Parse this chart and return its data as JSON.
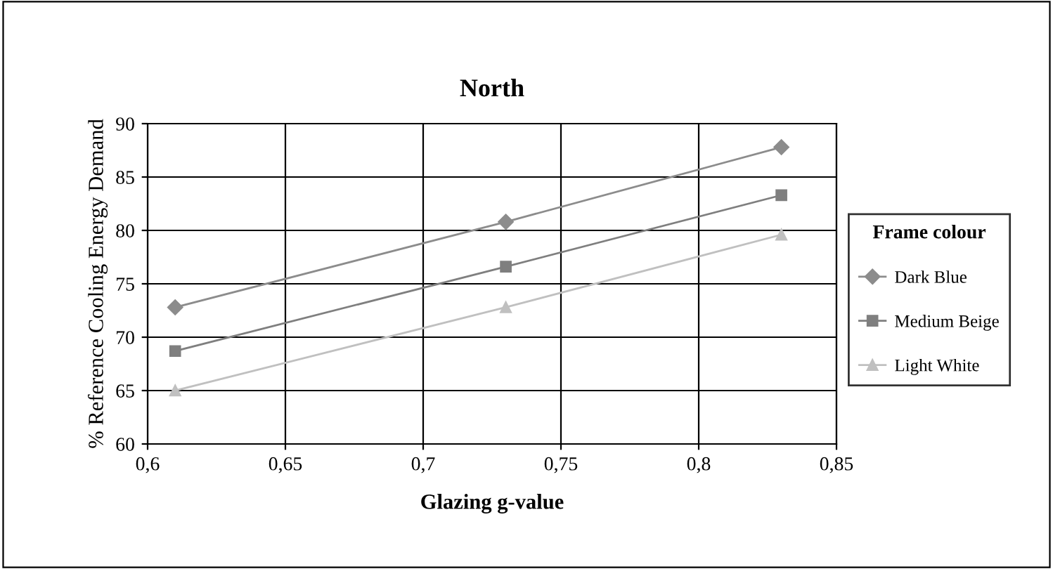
{
  "chart_data": {
    "type": "line",
    "title": "North",
    "xlabel": "Glazing g-value",
    "ylabel": "% Reference Cooling Energy Demand",
    "legend_title": "Frame colour",
    "x": [
      0.61,
      0.73,
      0.83
    ],
    "series": [
      {
        "name": "Dark Blue",
        "color": "#8c8c8c",
        "marker": "diamond",
        "values": [
          72.8,
          80.8,
          87.8
        ]
      },
      {
        "name": "Medium Beige",
        "color": "#7f7f7f",
        "marker": "square",
        "values": [
          68.7,
          76.6,
          83.3
        ]
      },
      {
        "name": "Light White",
        "color": "#c0c0c0",
        "marker": "triangle",
        "values": [
          65.0,
          72.8,
          79.6
        ]
      }
    ],
    "xlim": [
      0.6,
      0.85
    ],
    "xticks": [
      {
        "value": 0.6,
        "label": "0,6"
      },
      {
        "value": 0.65,
        "label": "0,65"
      },
      {
        "value": 0.7,
        "label": "0,7"
      },
      {
        "value": 0.75,
        "label": "0,75"
      },
      {
        "value": 0.8,
        "label": "0,8"
      },
      {
        "value": 0.85,
        "label": "0,85"
      }
    ],
    "ylim": [
      60,
      90
    ],
    "yticks": [
      60,
      65,
      70,
      75,
      80,
      85,
      90
    ],
    "grid": true,
    "legend": "right",
    "line_style": "solid"
  }
}
